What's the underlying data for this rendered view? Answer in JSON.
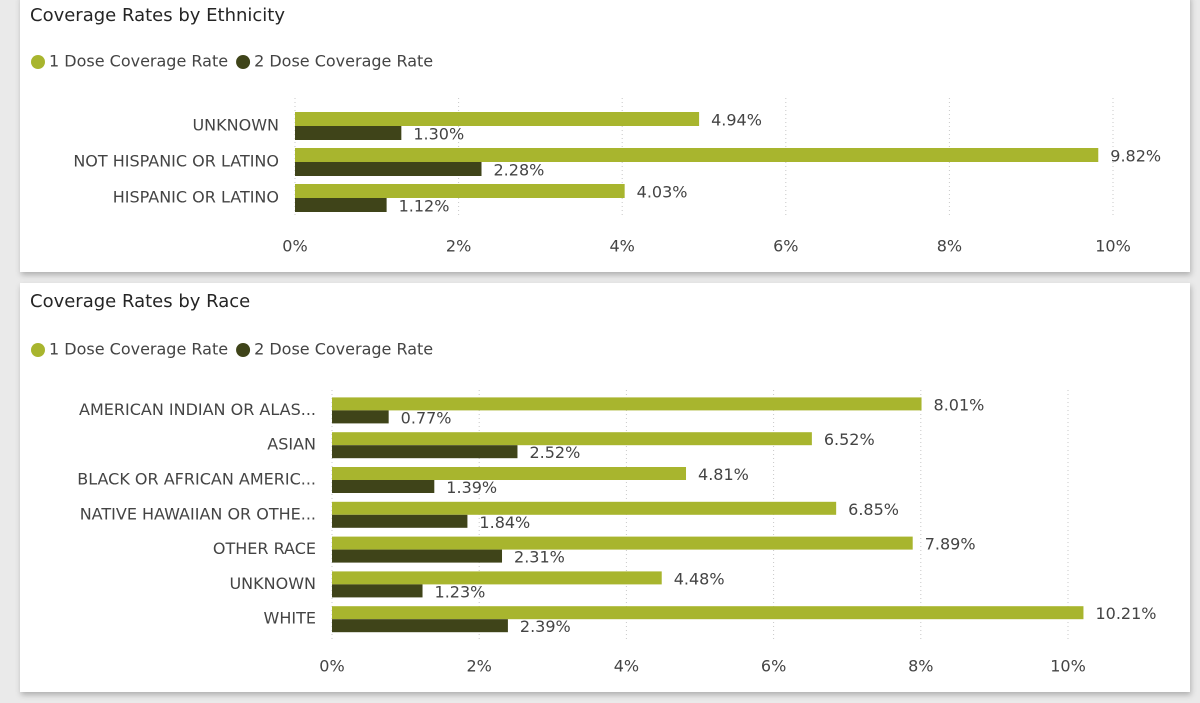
{
  "chart_data": [
    {
      "type": "hbar",
      "title": "Coverage Rates by Ethnicity",
      "categories": [
        "UNKNOWN",
        "NOT HISPANIC OR LATINO",
        "HISPANIC OR LATINO"
      ],
      "series": [
        {
          "name": "1 Dose Coverage Rate",
          "color": "#a8b52e",
          "values": [
            4.94,
            9.82,
            4.03
          ],
          "value_labels": [
            "4.94%",
            "9.82%",
            "4.03%"
          ]
        },
        {
          "name": "2 Dose Coverage Rate",
          "color": "#3f4419",
          "values": [
            1.3,
            2.28,
            1.12
          ],
          "value_labels": [
            "1.30%",
            "2.28%",
            "1.12%"
          ]
        }
      ],
      "xlim": [
        0,
        10
      ],
      "xticks": [
        {
          "value": 0,
          "label": "0%"
        },
        {
          "value": 2,
          "label": "2%"
        },
        {
          "value": 4,
          "label": "4%"
        },
        {
          "value": 6,
          "label": "6%"
        },
        {
          "value": 8,
          "label": "8%"
        },
        {
          "value": 10,
          "label": "10%"
        }
      ],
      "grid": true,
      "legend": "top-left"
    },
    {
      "type": "hbar",
      "title": "Coverage Rates by Race",
      "categories": [
        "AMERICAN INDIAN OR ALAS...",
        "ASIAN",
        "BLACK OR AFRICAN AMERIC...",
        "NATIVE HAWAIIAN OR OTHE...",
        "OTHER RACE",
        "UNKNOWN",
        "WHITE"
      ],
      "series": [
        {
          "name": "1 Dose Coverage Rate",
          "color": "#a8b52e",
          "values": [
            8.01,
            6.52,
            4.81,
            6.85,
            7.89,
            4.48,
            10.21
          ],
          "value_labels": [
            "8.01%",
            "6.52%",
            "4.81%",
            "6.85%",
            "7.89%",
            "4.48%",
            "10.21%"
          ]
        },
        {
          "name": "2 Dose Coverage Rate",
          "color": "#3f4419",
          "values": [
            0.77,
            2.52,
            1.39,
            1.84,
            2.31,
            1.23,
            2.39
          ],
          "value_labels": [
            "0.77%",
            "2.52%",
            "1.39%",
            "1.84%",
            "2.31%",
            "1.23%",
            "2.39%"
          ]
        }
      ],
      "xlim": [
        0,
        10
      ],
      "xticks": [
        {
          "value": 0,
          "label": "0%"
        },
        {
          "value": 2,
          "label": "2%"
        },
        {
          "value": 4,
          "label": "4%"
        },
        {
          "value": 6,
          "label": "6%"
        },
        {
          "value": 8,
          "label": "8%"
        },
        {
          "value": 10,
          "label": "10%"
        }
      ],
      "grid": true,
      "legend": "top-left"
    }
  ]
}
